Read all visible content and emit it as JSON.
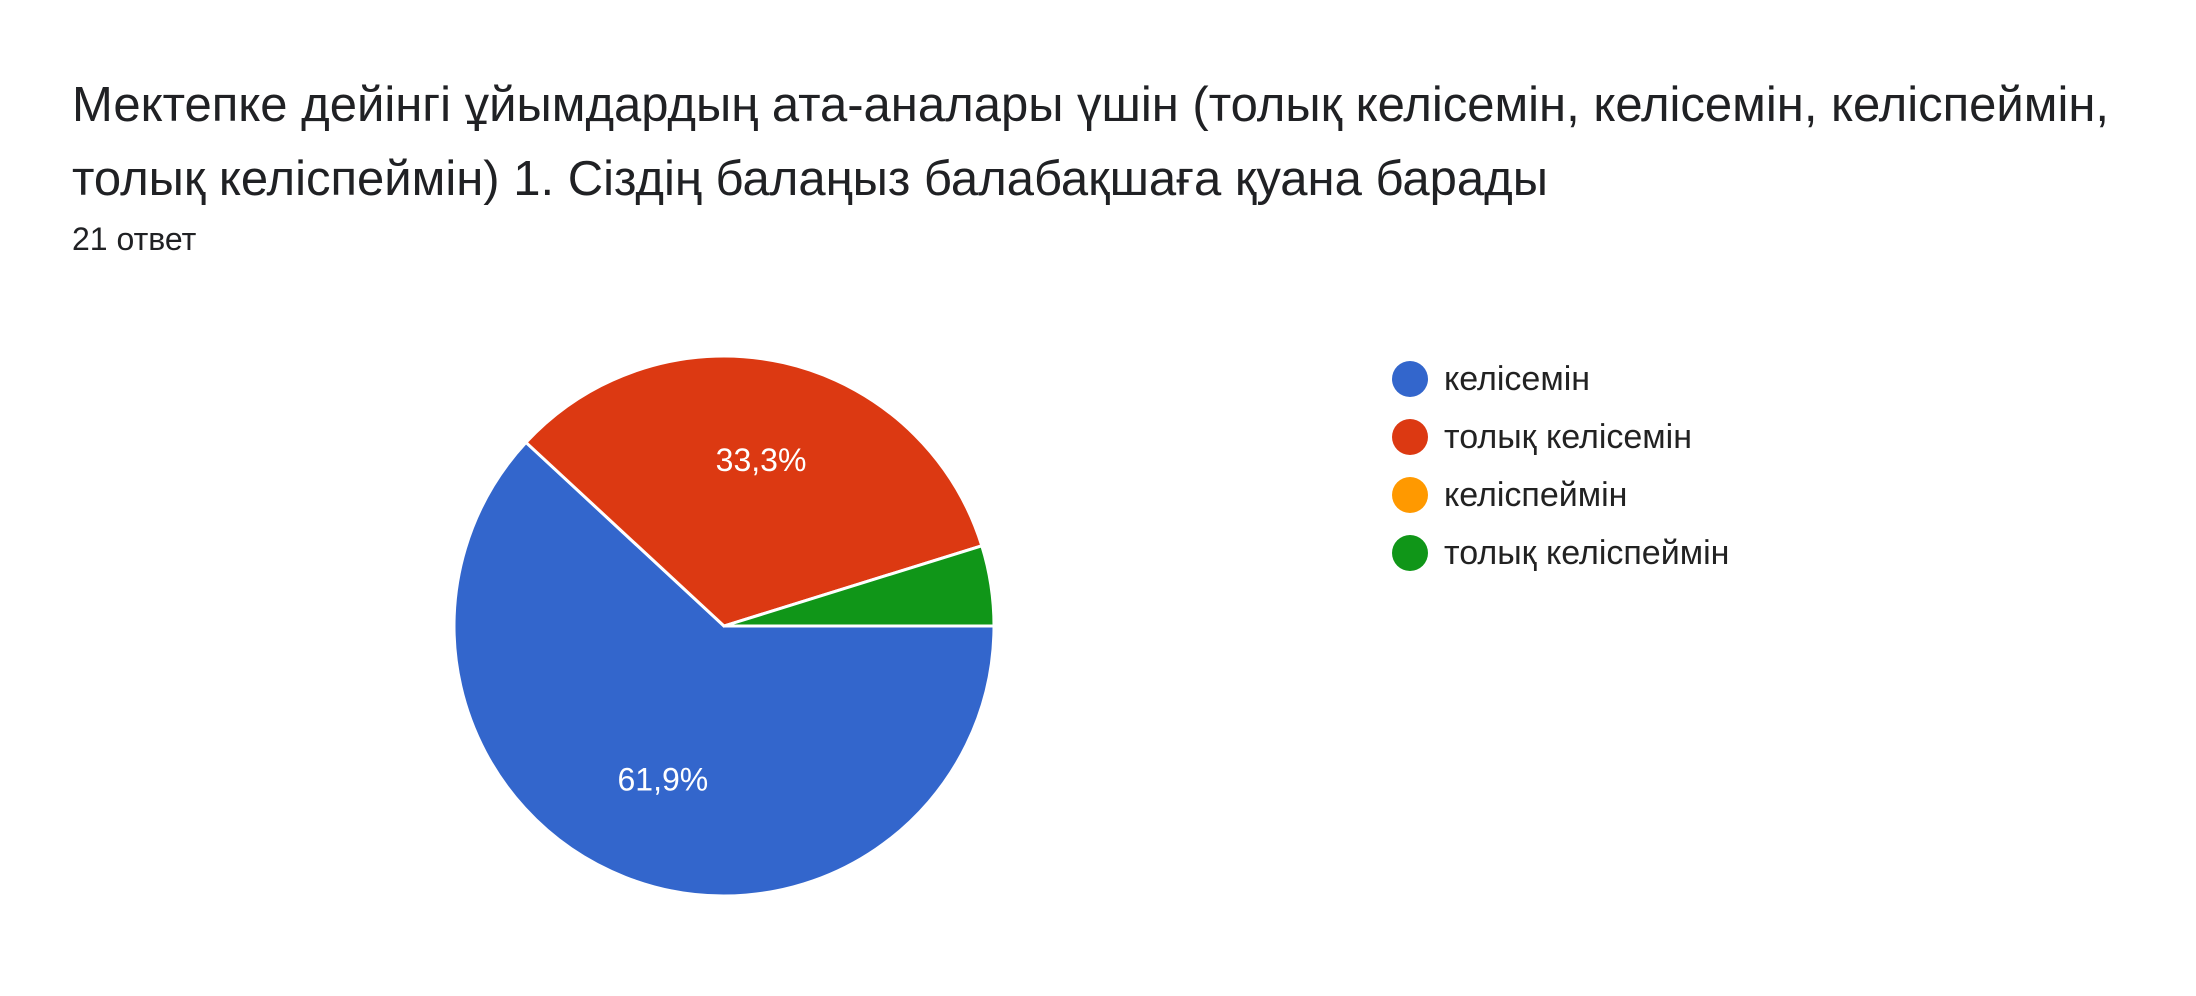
{
  "question": {
    "title": "Мектепке дейінгі ұйымдардың ата-аналары үшін (толық келісемін, келісемін, келіспеймін, толық келіспеймін)  1. Сіздің балаңыз балабақшаға қуана барады",
    "response_count": "21 ответ"
  },
  "chart_data": {
    "type": "pie",
    "title": "Мектепке дейінгі ұйымдардың ата-аналары үшін (толық келісемін, келісемін, келіспеймін, толық келіспеймін)  1. Сіздің балаңыз балабақшаға қуана барады",
    "categories": [
      "келісемін",
      "толық келісемін",
      "келіспеймін",
      "толық келіспеймін"
    ],
    "values": [
      61.9,
      33.3,
      0,
      4.8
    ],
    "colors": [
      "#3366cc",
      "#dc3912",
      "#ff9900",
      "#109618"
    ],
    "data_labels": [
      "61,9%",
      "33,3%",
      "",
      ""
    ],
    "legend_position": "right",
    "start_angle_degrees": 0,
    "direction": "clockwise-from-3-oclock"
  }
}
